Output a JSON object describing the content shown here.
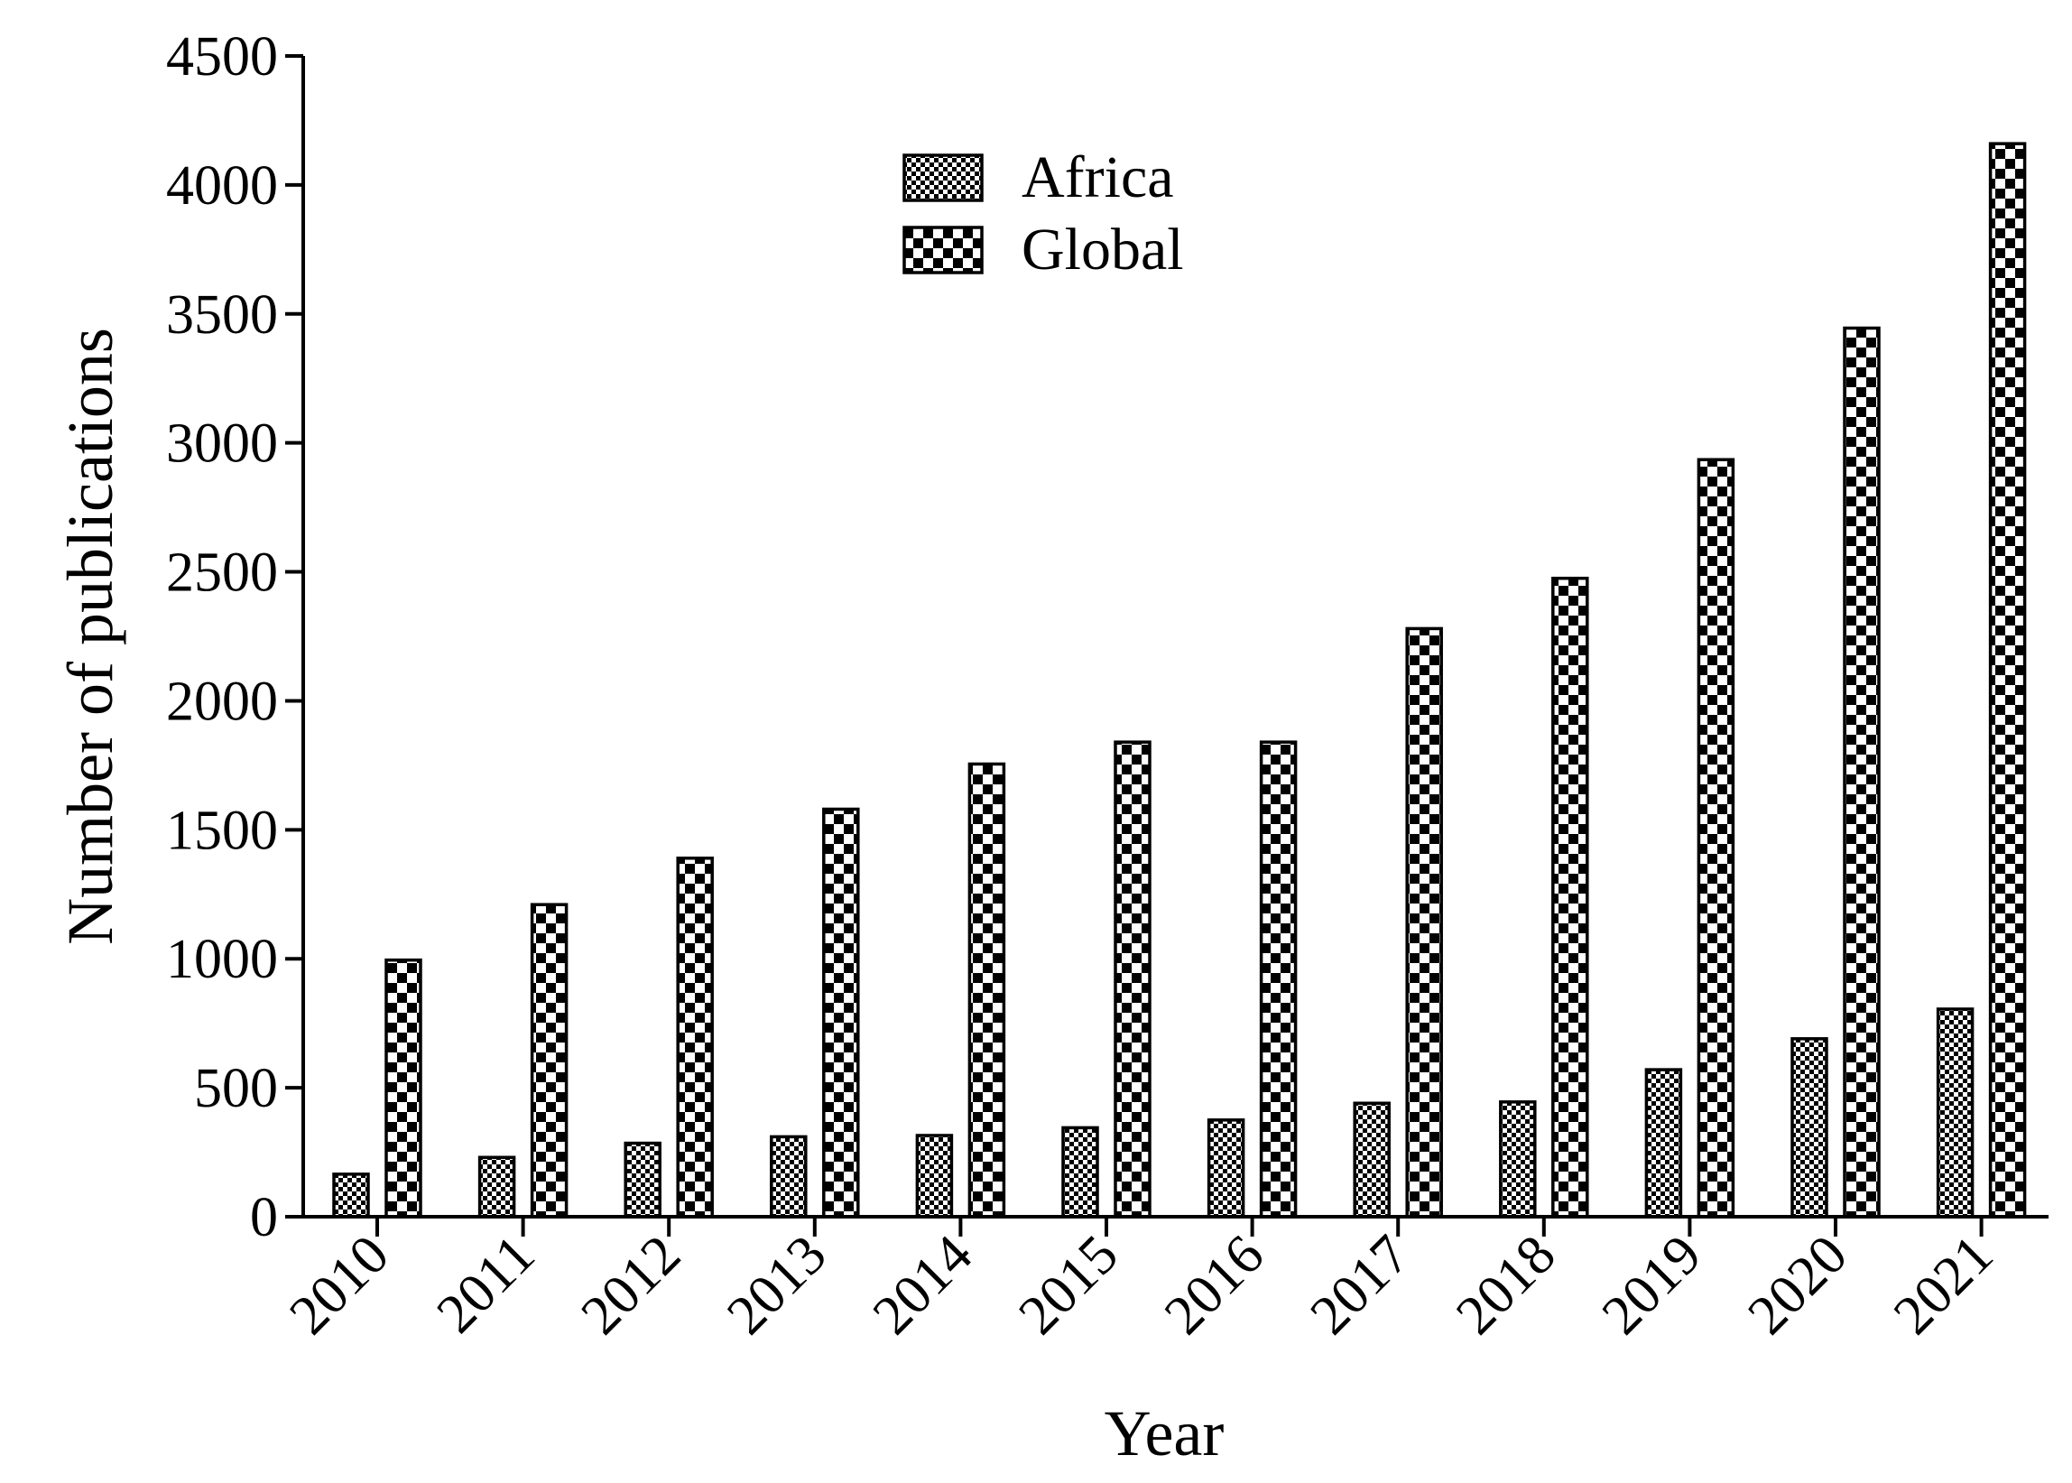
{
  "chart_data": {
    "type": "bar",
    "title": "",
    "xlabel": "Year",
    "ylabel": "Number of publications",
    "categories": [
      "2010",
      "2011",
      "2012",
      "2013",
      "2014",
      "2015",
      "2016",
      "2017",
      "2018",
      "2019",
      "2020",
      "2021"
    ],
    "series": [
      {
        "name": "Africa",
        "values": [
          165,
          230,
          285,
          310,
          315,
          345,
          375,
          440,
          445,
          570,
          690,
          805
        ],
        "pattern": "fine-checker"
      },
      {
        "name": "Global",
        "values": [
          995,
          1210,
          1390,
          1580,
          1755,
          1840,
          1840,
          2280,
          2475,
          2935,
          3445,
          4160
        ],
        "pattern": "coarse-checker"
      }
    ],
    "ylim": [
      0,
      4500
    ],
    "yticks": [
      "0",
      "500",
      "1000",
      "1500",
      "2000",
      "2500",
      "3000",
      "3500",
      "4000",
      "4500"
    ],
    "grid": false,
    "legend_position": "top-center",
    "colors": {
      "ink": "#000000",
      "background": "#ffffff"
    }
  }
}
